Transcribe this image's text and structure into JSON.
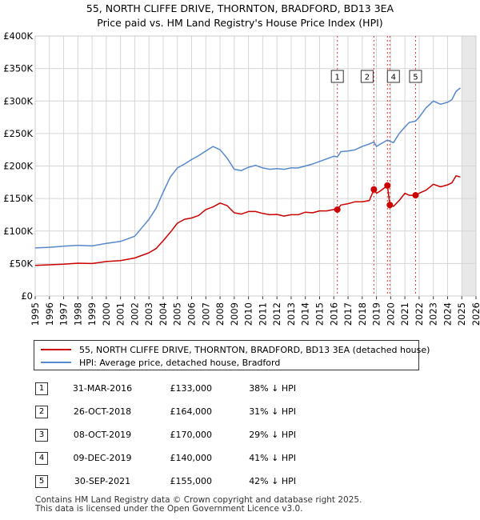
{
  "chart_data": {
    "type": "line",
    "title": "55, NORTH CLIFFE DRIVE, THORNTON, BRADFORD, BD13 3EA",
    "subtitle": "Price paid vs. HM Land Registry's House Price Index (HPI)",
    "xlabel": "",
    "ylabel": "",
    "xlim": [
      1995,
      2026
    ],
    "ylim": [
      0,
      400000
    ],
    "x_ticks": [
      "1995",
      "1996",
      "1997",
      "1998",
      "1999",
      "2000",
      "2001",
      "2002",
      "2003",
      "2004",
      "2005",
      "2006",
      "2007",
      "2008",
      "2009",
      "2010",
      "2011",
      "2012",
      "2013",
      "2014",
      "2015",
      "2016",
      "2017",
      "2018",
      "2019",
      "2020",
      "2021",
      "2022",
      "2023",
      "2024",
      "2025",
      "2026"
    ],
    "y_ticks": [
      {
        "value": 0,
        "label": "£0"
      },
      {
        "value": 50000,
        "label": "£50K"
      },
      {
        "value": 100000,
        "label": "£100K"
      },
      {
        "value": 150000,
        "label": "£150K"
      },
      {
        "value": 200000,
        "label": "£200K"
      },
      {
        "value": 250000,
        "label": "£250K"
      },
      {
        "value": 300000,
        "label": "£300K"
      },
      {
        "value": 350000,
        "label": "£350K"
      },
      {
        "value": 400000,
        "label": "£400K"
      }
    ],
    "grid": true,
    "forecast_shade_from": 2025.0,
    "series": [
      {
        "name": "55, NORTH CLIFFE DRIVE, THORNTON, BRADFORD, BD13 3EA (detached house)",
        "color": "#cc0000",
        "x": [
          1995,
          1996,
          1997,
          1998,
          1999,
          2000,
          2001,
          2002,
          2003,
          2003.5,
          2004,
          2004.5,
          2005,
          2005.5,
          2006,
          2006.5,
          2007,
          2007.5,
          2008,
          2008.5,
          2009,
          2009.5,
          2010,
          2010.5,
          2011,
          2011.5,
          2012,
          2012.5,
          2013,
          2013.5,
          2014,
          2014.5,
          2015,
          2015.5,
          2016,
          2016.25,
          2016.5,
          2017,
          2017.5,
          2018,
          2018.5,
          2018.82,
          2019,
          2019.3,
          2019.77,
          2019.94,
          2020.2,
          2020.6,
          2021,
          2021.3,
          2021.75,
          2022,
          2022.5,
          2023,
          2023.5,
          2024,
          2024.3,
          2024.6,
          2024.9
        ],
        "values": [
          47000,
          48000,
          49000,
          50500,
          50000,
          53000,
          54500,
          58500,
          66500,
          73000,
          85000,
          98000,
          112000,
          118000,
          120000,
          124000,
          133000,
          137000,
          143000,
          139000,
          128000,
          126000,
          130000,
          130000,
          127000,
          125000,
          125500,
          123000,
          125000,
          125000,
          129000,
          128000,
          131000,
          131000,
          133000,
          133000,
          140000,
          142000,
          145000,
          145000,
          147000,
          164000,
          158000,
          162000,
          170000,
          140000,
          138000,
          147000,
          158000,
          155000,
          155000,
          158000,
          163000,
          172000,
          168000,
          171000,
          174000,
          185000,
          183000
        ]
      },
      {
        "name": "HPI: Average price, detached house, Bradford",
        "color": "#5588cc",
        "x": [
          1995,
          1996,
          1997,
          1998,
          1999,
          2000,
          2001,
          2002,
          2002.5,
          2003,
          2003.5,
          2004,
          2004.5,
          2005,
          2005.5,
          2006,
          2006.5,
          2007,
          2007.5,
          2008,
          2008.5,
          2009,
          2009.5,
          2010,
          2010.5,
          2011,
          2011.5,
          2012,
          2012.5,
          2013,
          2013.5,
          2014,
          2014.5,
          2015,
          2015.5,
          2016,
          2016.25,
          2016.5,
          2017,
          2017.5,
          2018,
          2018.5,
          2018.82,
          2019,
          2019.3,
          2019.77,
          2019.94,
          2020.2,
          2020.6,
          2021,
          2021.3,
          2021.75,
          2022,
          2022.5,
          2023,
          2023.5,
          2024,
          2024.3,
          2024.6,
          2024.9
        ],
        "values": [
          74000,
          75000,
          76500,
          78000,
          77000,
          81000,
          84000,
          92000,
          105000,
          118000,
          135000,
          160000,
          183000,
          197000,
          203000,
          210000,
          216000,
          223000,
          230000,
          225000,
          212000,
          195000,
          193000,
          198000,
          201000,
          197000,
          195000,
          196000,
          195000,
          197000,
          197000,
          200000,
          203000,
          207000,
          211000,
          215000,
          214000,
          222000,
          223000,
          225000,
          230000,
          234000,
          237000,
          230000,
          234000,
          240000,
          238000,
          236000,
          250000,
          260000,
          267000,
          269000,
          275000,
          290000,
          300000,
          295000,
          298000,
          302000,
          315000,
          320000
        ]
      }
    ],
    "sales": [
      {
        "n": "1",
        "x": 2016.25,
        "value": 133000
      },
      {
        "n": "2",
        "x": 2018.82,
        "value": 164000
      },
      {
        "n": "3",
        "x": 2019.77,
        "value": 170000
      },
      {
        "n": "4",
        "x": 2019.94,
        "value": 140000
      },
      {
        "n": "5",
        "x": 2021.75,
        "value": 155000
      }
    ],
    "chart_labels": [
      "1",
      "2",
      "4",
      "5"
    ]
  },
  "legend": {
    "property_label": "55, NORTH CLIFFE DRIVE, THORNTON, BRADFORD, BD13 3EA (detached house)",
    "hpi_label": "HPI: Average price, detached house, Bradford",
    "property_color": "#cc0000",
    "hpi_color": "#5588cc"
  },
  "table": [
    {
      "n": "1",
      "date": "31-MAR-2016",
      "price": "£133,000",
      "hpi": "38% ↓ HPI"
    },
    {
      "n": "2",
      "date": "26-OCT-2018",
      "price": "£164,000",
      "hpi": "31% ↓ HPI"
    },
    {
      "n": "3",
      "date": "08-OCT-2019",
      "price": "£170,000",
      "hpi": "29% ↓ HPI"
    },
    {
      "n": "4",
      "date": "09-DEC-2019",
      "price": "£140,000",
      "hpi": "41% ↓ HPI"
    },
    {
      "n": "5",
      "date": "30-SEP-2021",
      "price": "£155,000",
      "hpi": "42% ↓ HPI"
    }
  ],
  "footer": {
    "line1": "Contains HM Land Registry data © Crown copyright and database right 2025.",
    "line2": "This data is licensed under the Open Government Licence v3.0."
  }
}
